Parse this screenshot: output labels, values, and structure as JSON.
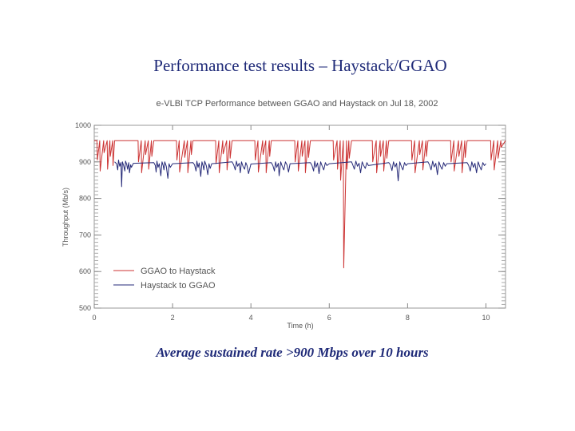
{
  "slide": {
    "title": "Performance test results – Haystack/GGAO",
    "caption": "Average sustained rate >900 Mbps over 10 hours"
  },
  "colors": {
    "ggao_to_haystack": "#cc3333",
    "haystack_to_ggao": "#262a78",
    "title": "#1f2a78"
  },
  "chart_data": {
    "type": "line",
    "title": "e-VLBI TCP Performance between GGAO and Haystack on Jul 18, 2002",
    "xlabel": "Time (h)",
    "ylabel": "Throughput (Mb/s)",
    "xlim": [
      0,
      10.5
    ],
    "ylim": [
      500,
      1000
    ],
    "xticks": [
      0,
      2,
      4,
      6,
      8,
      10
    ],
    "yticks": [
      500,
      600,
      700,
      800,
      900,
      1000
    ],
    "legend_position": "bottom-left",
    "series": [
      {
        "name": "GGAO to Haystack",
        "color": "#cc3333",
        "x": [
          0.0,
          0.07,
          0.08,
          0.14,
          0.15,
          0.24,
          0.25,
          0.33,
          0.34,
          0.4,
          0.41,
          0.47,
          0.48,
          0.52,
          1.0,
          1.12,
          1.13,
          1.2,
          1.21,
          1.3,
          1.31,
          1.38,
          1.39,
          1.46,
          1.47,
          1.52,
          2.0,
          2.1,
          2.11,
          2.17,
          2.18,
          2.3,
          2.31,
          2.38,
          2.39,
          2.47,
          2.48,
          2.52,
          3.0,
          3.1,
          3.11,
          3.18,
          3.19,
          3.28,
          3.29,
          3.38,
          3.39,
          3.46,
          3.47,
          3.52,
          4.0,
          4.1,
          4.11,
          4.18,
          4.19,
          4.3,
          4.31,
          4.38,
          4.39,
          4.47,
          4.48,
          4.52,
          5.0,
          5.12,
          5.13,
          5.2,
          5.21,
          5.3,
          5.31,
          5.38,
          5.39,
          5.46,
          5.47,
          5.52,
          6.0,
          6.1,
          6.11,
          6.2,
          6.21,
          6.28,
          6.29,
          6.36,
          6.37,
          6.44,
          6.45,
          6.5,
          6.51,
          6.57,
          7.0,
          7.1,
          7.11,
          7.2,
          7.21,
          7.3,
          7.31,
          7.38,
          7.39,
          7.46,
          7.47,
          7.52,
          8.0,
          8.1,
          8.11,
          8.18,
          8.19,
          8.3,
          8.31,
          8.38,
          8.39,
          8.47,
          8.48,
          8.52,
          9.0,
          9.1,
          9.11,
          9.18,
          9.19,
          9.3,
          9.31,
          9.38,
          9.39,
          9.46,
          9.47,
          9.52,
          10.0,
          10.12,
          10.13,
          10.2,
          10.21,
          10.3,
          10.31,
          10.38,
          10.39,
          10.5
        ],
        "y": [
          958,
          958,
          905,
          958,
          875,
          958,
          925,
          958,
          880,
          958,
          915,
          958,
          890,
          958,
          958,
          958,
          900,
          958,
          870,
          958,
          920,
          958,
          880,
          958,
          915,
          958,
          958,
          958,
          905,
          958,
          872,
          958,
          912,
          958,
          870,
          958,
          920,
          958,
          958,
          958,
          895,
          958,
          870,
          958,
          922,
          958,
          878,
          958,
          910,
          958,
          958,
          958,
          905,
          958,
          872,
          958,
          920,
          958,
          870,
          958,
          915,
          958,
          958,
          958,
          900,
          958,
          875,
          958,
          915,
          958,
          870,
          958,
          912,
          958,
          958,
          958,
          905,
          958,
          880,
          958,
          850,
          958,
          610,
          958,
          880,
          958,
          910,
          958,
          958,
          958,
          900,
          958,
          870,
          958,
          915,
          958,
          875,
          958,
          910,
          958,
          958,
          958,
          905,
          958,
          870,
          958,
          920,
          958,
          878,
          958,
          915,
          958,
          958,
          958,
          900,
          958,
          875,
          958,
          915,
          958,
          870,
          958,
          912,
          958,
          958,
          958,
          905,
          958,
          878,
          958,
          910,
          958,
          940,
          958
        ]
      },
      {
        "name": "Haystack to GGAO",
        "color": "#262a78",
        "x": [
          0.52,
          0.57,
          0.6,
          0.62,
          0.65,
          0.68,
          0.7,
          0.72,
          0.75,
          0.78,
          0.8,
          0.83,
          0.85,
          0.88,
          0.9,
          0.93,
          0.95,
          1.0,
          1.52,
          1.56,
          1.58,
          1.6,
          1.63,
          1.66,
          1.7,
          1.73,
          1.76,
          1.78,
          1.8,
          1.84,
          1.88,
          1.91,
          1.94,
          2.0,
          2.52,
          2.56,
          2.6,
          2.62,
          2.65,
          2.68,
          2.72,
          2.75,
          2.78,
          2.8,
          2.82,
          2.86,
          2.9,
          2.93,
          2.96,
          3.0,
          3.52,
          3.56,
          3.6,
          3.63,
          3.66,
          3.7,
          3.73,
          3.76,
          3.8,
          3.84,
          3.87,
          3.9,
          3.94,
          4.0,
          4.52,
          4.56,
          4.6,
          4.63,
          4.66,
          4.7,
          4.72,
          4.76,
          4.8,
          4.84,
          4.88,
          4.92,
          4.96,
          5.0,
          5.52,
          5.56,
          5.6,
          5.63,
          5.66,
          5.7,
          5.74,
          5.78,
          5.82,
          5.86,
          5.9,
          5.94,
          6.0,
          6.57,
          6.6,
          6.64,
          6.68,
          6.72,
          6.76,
          6.8,
          6.84,
          6.88,
          6.92,
          6.96,
          7.0,
          7.52,
          7.56,
          7.6,
          7.64,
          7.68,
          7.72,
          7.76,
          7.8,
          7.84,
          7.88,
          7.92,
          7.96,
          8.0,
          8.52,
          8.56,
          8.6,
          8.64,
          8.68,
          8.72,
          8.76,
          8.8,
          8.84,
          8.88,
          8.92,
          8.96,
          9.0,
          9.52,
          9.56,
          9.6,
          9.64,
          9.68,
          9.72,
          9.76,
          9.8,
          9.84,
          9.88,
          9.92,
          9.96,
          10.0
        ],
        "y": [
          900,
          895,
          878,
          905,
          888,
          898,
          832,
          900,
          890,
          875,
          902,
          893,
          880,
          898,
          870,
          892,
          885,
          896,
          898,
          890,
          872,
          902,
          885,
          895,
          862,
          900,
          890,
          878,
          900,
          888,
          855,
          895,
          885,
          895,
          898,
          892,
          875,
          902,
          885,
          897,
          860,
          900,
          888,
          878,
          902,
          890,
          865,
          895,
          882,
          895,
          900,
          892,
          878,
          902,
          888,
          896,
          870,
          900,
          887,
          880,
          898,
          890,
          868,
          894,
          898,
          890,
          875,
          900,
          885,
          896,
          862,
          900,
          888,
          878,
          900,
          892,
          872,
          895,
          898,
          890,
          875,
          902,
          885,
          897,
          868,
          900,
          888,
          878,
          898,
          890,
          895,
          900,
          892,
          880,
          902,
          888,
          896,
          870,
          900,
          890,
          882,
          898,
          890,
          898,
          892,
          876,
          900,
          886,
          896,
          848,
          900,
          888,
          878,
          898,
          890,
          895,
          900,
          892,
          878,
          902,
          886,
          896,
          865,
          900,
          888,
          880,
          898,
          888,
          895,
          898,
          890,
          875,
          900,
          885,
          896,
          870,
          900,
          888,
          878,
          898,
          890,
          895
        ]
      }
    ]
  }
}
